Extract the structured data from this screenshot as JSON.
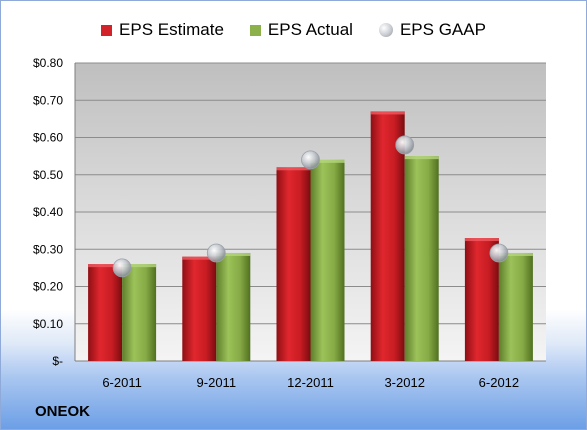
{
  "company": "ONEOK",
  "colors": {
    "estimate": "#d2232a",
    "actual": "#8cb04a",
    "gaap": "#b9bdc4"
  },
  "chart_data": {
    "type": "bar",
    "categories": [
      "6-2011",
      "9-2011",
      "12-2011",
      "3-2012",
      "6-2012"
    ],
    "series": [
      {
        "name": "EPS Estimate",
        "values": [
          0.26,
          0.28,
          0.52,
          0.67,
          0.33
        ]
      },
      {
        "name": "EPS Actual",
        "values": [
          0.26,
          0.29,
          0.54,
          0.55,
          0.29
        ]
      },
      {
        "name": "EPS GAAP",
        "values": [
          0.25,
          0.29,
          0.54,
          0.58,
          0.29
        ]
      }
    ],
    "ylim": [
      0,
      0.8
    ],
    "yticks": [
      0,
      0.1,
      0.2,
      0.3,
      0.4,
      0.5,
      0.6,
      0.7,
      0.8
    ],
    "ytick_labels": [
      "$-",
      "$0.10",
      "$0.20",
      "$0.30",
      "$0.40",
      "$0.50",
      "$0.60",
      "$0.70",
      "$0.80"
    ],
    "grid": true,
    "legend": "top"
  }
}
